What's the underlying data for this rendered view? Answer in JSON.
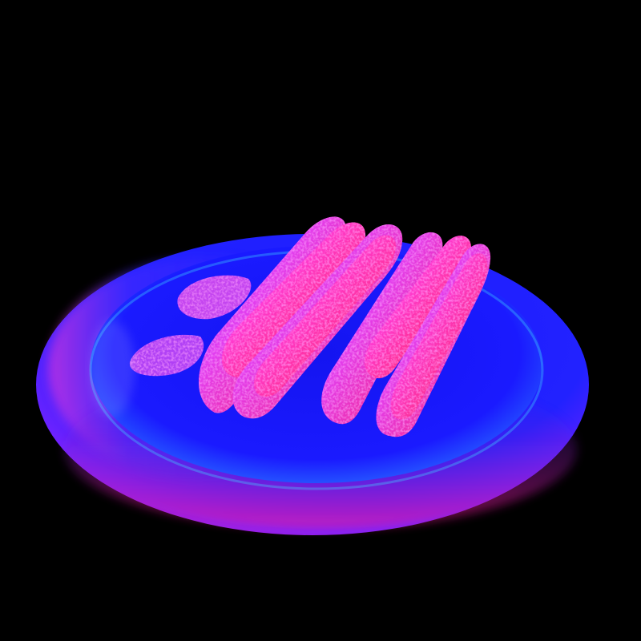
{
  "scene": {
    "subject": "plate-with-hot-dogs",
    "render_style": "normal-map",
    "item_count": 4,
    "side_item_count": 2
  },
  "colors": {
    "background": "#000000",
    "plate_blue": "#1a1aff",
    "plate_magenta": "#ff1aa8",
    "plate_cyan": "#3fd6ff",
    "food_pink": "#ff3de0",
    "food_red": "#ff1a3a",
    "food_violet": "#7a2cff"
  }
}
